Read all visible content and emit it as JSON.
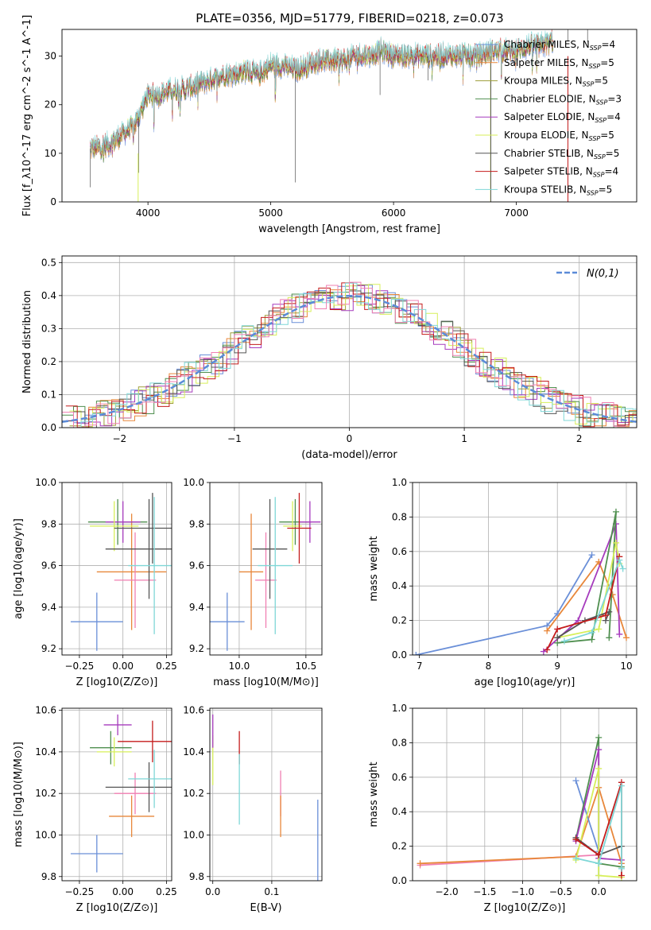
{
  "title": "PLATE=0356, MJD=51779, FIBERID=0218, z=0.073",
  "colors": {
    "c0": "#6a8fd8",
    "c1": "#e8873a",
    "c2": "#9e9e3a",
    "c3": "#4f8f4f",
    "c4": "#a63bbd",
    "c5": "#d7ef5a",
    "c6": "#555555",
    "c7": "#c41c1c",
    "c8": "#7fd7d7",
    "c_pink": "#f07fb2"
  },
  "chart_data": [
    {
      "type": "line",
      "panel": "spectrum",
      "xlabel": "wavelength [Angstrom, rest frame]",
      "ylabel": "Flux [f_λ10^-17 erg cm^-2 s^-1 A^-1]",
      "xlim": [
        3300,
        7980
      ],
      "ylim": [
        0,
        35.5
      ],
      "xticks": [
        4000,
        5000,
        6000,
        7000
      ],
      "yticks": [
        0,
        10,
        20,
        30
      ],
      "grid": false,
      "legend_position": "top-right",
      "legend": [
        "Chabrier MILES, N_SSP=4",
        "Salpeter MILES, N_SSP=5",
        "Kroupa MILES, N_SSP=5",
        "Chabrier ELODIE, N_SSP=3",
        "Salpeter ELODIE, N_SSP=4",
        "Kroupa ELODIE, N_SSP=5",
        "Chabrier STELIB, N_SSP=5",
        "Salpeter STELIB, N_SSP=4",
        "Kroupa STELIB, N_SSP=5"
      ],
      "continuum_x": [
        3530,
        3600,
        3700,
        3800,
        3900,
        4000,
        4100,
        4200,
        4300,
        4400,
        4500,
        4600,
        4700,
        4800,
        4900,
        5000,
        5100,
        5200,
        5300,
        5400,
        5500,
        5600,
        5700,
        5800,
        5900,
        6000,
        6100,
        6200,
        6300,
        6400,
        6500,
        6600,
        6700,
        6800,
        6900,
        7000,
        7100,
        7200,
        7300
      ],
      "continuum_y": [
        11,
        11,
        12,
        14,
        16,
        22,
        22,
        23,
        23,
        24,
        25,
        26,
        26,
        27,
        26,
        28,
        28,
        27,
        28,
        29,
        29,
        29,
        30,
        30,
        31,
        30,
        30,
        30,
        30,
        30,
        30,
        30,
        30,
        31,
        31,
        31,
        32,
        32,
        33
      ]
    },
    {
      "type": "line",
      "panel": "residual-histogram",
      "xlabel": "(data-model)/error",
      "ylabel": "Normed distribution",
      "xlim": [
        -2.5,
        2.5
      ],
      "ylim": [
        0,
        0.52
      ],
      "xticks": [
        -2,
        -1,
        0,
        1,
        2
      ],
      "yticks": [
        0.0,
        0.1,
        0.2,
        0.3,
        0.4,
        0.5
      ],
      "grid": true,
      "legend_position": "top-right",
      "legend": [
        "N(0,1)"
      ]
    },
    {
      "type": "scatter",
      "panel": "age-vs-Z",
      "xlabel": "Z [log10(Z/Z⊙)]",
      "ylabel": "age  [log10(age/yr)]",
      "xlim": [
        -0.35,
        0.28
      ],
      "ylim": [
        9.17,
        10.0
      ],
      "xticks": [
        -0.25,
        0.0,
        0.25
      ],
      "yticks": [
        9.2,
        9.4,
        9.6,
        9.8,
        10.0
      ],
      "grid": true,
      "points": [
        {
          "x": -0.15,
          "y": 9.33,
          "xerr": 0.15,
          "yerr": 0.14,
          "color": "c0"
        },
        {
          "x": 0.05,
          "y": 9.57,
          "xerr": 0.2,
          "yerr": 0.28,
          "color": "c1"
        },
        {
          "x": 0.07,
          "y": 9.53,
          "xerr": 0.12,
          "yerr": 0.23,
          "color": "c_pink"
        },
        {
          "x": -0.03,
          "y": 9.81,
          "xerr": 0.17,
          "yerr": 0.11,
          "color": "c3"
        },
        {
          "x": 0.0,
          "y": 9.81,
          "xerr": 0.1,
          "yerr": 0.1,
          "color": "c4"
        },
        {
          "x": -0.05,
          "y": 9.79,
          "xerr": 0.14,
          "yerr": 0.12,
          "color": "c5"
        },
        {
          "x": 0.15,
          "y": 9.68,
          "xerr": 0.25,
          "yerr": 0.24,
          "color": "c6"
        },
        {
          "x": 0.17,
          "y": 9.78,
          "xerr": 0.22,
          "yerr": 0.17,
          "color": "c6"
        },
        {
          "x": 0.18,
          "y": 9.6,
          "xerr": 0.15,
          "yerr": 0.33,
          "color": "c8"
        }
      ]
    },
    {
      "type": "scatter",
      "panel": "age-vs-mass",
      "xlabel": "mass [log10(M/M⊙)]",
      "ylabel": "",
      "xlim": [
        9.78,
        10.62
      ],
      "ylim": [
        9.17,
        10.0
      ],
      "xticks": [
        10.0,
        10.5
      ],
      "yticks": [
        9.2,
        9.4,
        9.6,
        9.8,
        10.0
      ],
      "grid": true,
      "points": [
        {
          "x": 9.91,
          "y": 9.33,
          "xerr": 0.13,
          "yerr": 0.14,
          "color": "c0"
        },
        {
          "x": 10.09,
          "y": 9.57,
          "xerr": 0.09,
          "yerr": 0.28,
          "color": "c1"
        },
        {
          "x": 10.2,
          "y": 9.53,
          "xerr": 0.08,
          "yerr": 0.23,
          "color": "c_pink"
        },
        {
          "x": 10.42,
          "y": 9.81,
          "xerr": 0.12,
          "yerr": 0.11,
          "color": "c3"
        },
        {
          "x": 10.53,
          "y": 9.81,
          "xerr": 0.08,
          "yerr": 0.1,
          "color": "c4"
        },
        {
          "x": 10.4,
          "y": 9.79,
          "xerr": 0.07,
          "yerr": 0.12,
          "color": "c5"
        },
        {
          "x": 10.23,
          "y": 9.68,
          "xerr": 0.13,
          "yerr": 0.24,
          "color": "c6"
        },
        {
          "x": 10.45,
          "y": 9.78,
          "xerr": 0.09,
          "yerr": 0.17,
          "color": "c7"
        },
        {
          "x": 10.27,
          "y": 9.6,
          "xerr": 0.13,
          "yerr": 0.33,
          "color": "c8"
        }
      ]
    },
    {
      "type": "line",
      "panel": "mass-weight-vs-age",
      "xlabel": "age  [log10(age/yr)]",
      "ylabel": "mass weight",
      "xlim": [
        6.9,
        10.15
      ],
      "ylim": [
        0,
        1.0
      ],
      "xticks": [
        7,
        8,
        9,
        10
      ],
      "yticks": [
        0.0,
        0.2,
        0.4,
        0.6,
        0.8,
        1.0
      ],
      "grid": true,
      "series": [
        {
          "color": "c0",
          "x": [
            6.95,
            8.85,
            9.0,
            9.5
          ],
          "y": [
            0.0,
            0.17,
            0.24,
            0.58
          ]
        },
        {
          "color": "c1",
          "x": [
            8.85,
            9.6,
            9.8,
            10.0
          ],
          "y": [
            0.14,
            0.54,
            0.35,
            0.1
          ]
        },
        {
          "color": "c4",
          "x": [
            8.8,
            9.3,
            9.85,
            9.9
          ],
          "y": [
            0.02,
            0.2,
            0.76,
            0.12
          ]
        },
        {
          "color": "c3",
          "x": [
            9.0,
            9.5,
            9.85,
            9.75
          ],
          "y": [
            0.07,
            0.09,
            0.83,
            0.1
          ]
        },
        {
          "color": "c5",
          "x": [
            9.0,
            9.6,
            9.85,
            9.9
          ],
          "y": [
            0.1,
            0.15,
            0.65,
            0.53
          ]
        },
        {
          "color": "c6",
          "x": [
            9.0,
            9.4,
            9.75,
            9.7
          ],
          "y": [
            0.1,
            0.2,
            0.25,
            0.2
          ]
        },
        {
          "color": "c7",
          "x": [
            8.85,
            9.0,
            9.7,
            9.9
          ],
          "y": [
            0.03,
            0.15,
            0.23,
            0.57
          ]
        },
        {
          "color": "c8",
          "x": [
            9.1,
            9.5,
            9.9,
            9.95
          ],
          "y": [
            0.08,
            0.13,
            0.55,
            0.5
          ]
        }
      ]
    },
    {
      "type": "scatter",
      "panel": "mass-vs-Z",
      "xlabel": "Z [log10(Z/Z⊙)]",
      "ylabel": "mass [log10(M/M⊙)]",
      "xlim": [
        -0.35,
        0.28
      ],
      "ylim": [
        9.78,
        10.61
      ],
      "xticks": [
        -0.25,
        0.0,
        0.25
      ],
      "yticks": [
        9.8,
        10.0,
        10.2,
        10.4,
        10.6
      ],
      "grid": true,
      "points": [
        {
          "x": -0.15,
          "y": 9.91,
          "xerr": 0.15,
          "yerr": 0.09,
          "color": "c0"
        },
        {
          "x": 0.05,
          "y": 10.09,
          "xerr": 0.13,
          "yerr": 0.1,
          "color": "c1"
        },
        {
          "x": 0.07,
          "y": 10.2,
          "xerr": 0.12,
          "yerr": 0.1,
          "color": "c_pink"
        },
        {
          "x": -0.07,
          "y": 10.42,
          "xerr": 0.12,
          "yerr": 0.08,
          "color": "c3"
        },
        {
          "x": -0.03,
          "y": 10.53,
          "xerr": 0.08,
          "yerr": 0.05,
          "color": "c4"
        },
        {
          "x": -0.05,
          "y": 10.4,
          "xerr": 0.1,
          "yerr": 0.07,
          "color": "c5"
        },
        {
          "x": 0.15,
          "y": 10.23,
          "xerr": 0.25,
          "yerr": 0.12,
          "color": "c6"
        },
        {
          "x": 0.17,
          "y": 10.45,
          "xerr": 0.2,
          "yerr": 0.1,
          "color": "c7"
        },
        {
          "x": 0.18,
          "y": 10.27,
          "xerr": 0.15,
          "yerr": 0.14,
          "color": "c8"
        }
      ]
    },
    {
      "type": "scatter",
      "panel": "mass-vs-EBV",
      "xlabel": "E(B-V)",
      "ylabel": "",
      "xlim": [
        -0.005,
        0.185
      ],
      "ylim": [
        9.78,
        10.61
      ],
      "xticks": [
        0.0,
        0.1
      ],
      "yticks": [
        9.8,
        10.0,
        10.2,
        10.4,
        10.6
      ],
      "grid": true,
      "points": [
        {
          "x": 0.0,
          "y": 10.36,
          "yerr": 0.12,
          "color": "c5"
        },
        {
          "x": 0.0,
          "y": 10.5,
          "yerr": 0.08,
          "color": "c4"
        },
        {
          "x": 0.045,
          "y": 10.42,
          "yerr": 0.08,
          "color": "c7"
        },
        {
          "x": 0.045,
          "y": 10.22,
          "yerr": 0.17,
          "color": "c8"
        },
        {
          "x": 0.115,
          "y": 10.2,
          "yerr": 0.11,
          "color": "c_pink"
        },
        {
          "x": 0.115,
          "y": 10.09,
          "yerr": 0.1,
          "color": "c1"
        },
        {
          "x": 0.178,
          "y": 9.97,
          "yerr": 0.2,
          "color": "c0"
        }
      ]
    },
    {
      "type": "line",
      "panel": "mass-weight-vs-Z",
      "xlabel": "Z [log10(Z/Z⊙)]",
      "ylabel": "mass weight",
      "xlim": [
        -2.45,
        0.5
      ],
      "ylim": [
        0,
        1.0
      ],
      "xticks": [
        -2.0,
        -1.5,
        -1.0,
        -0.5,
        0.0
      ],
      "yticks": [
        0.0,
        0.2,
        0.4,
        0.6,
        0.8,
        1.0
      ],
      "grid": true,
      "series": [
        {
          "color": "c_pink",
          "x": [
            -2.35,
            0.0
          ],
          "y": [
            0.09,
            0.15
          ]
        },
        {
          "color": "c1",
          "x": [
            -2.35,
            -0.3,
            0.0,
            0.3
          ],
          "y": [
            0.1,
            0.14,
            0.54,
            0.1
          ]
        },
        {
          "color": "c0",
          "x": [
            -0.3,
            0.0,
            0.0
          ],
          "y": [
            0.58,
            0.17,
            0.03
          ]
        },
        {
          "color": "c3",
          "x": [
            -0.3,
            0.0,
            0.0,
            0.3
          ],
          "y": [
            0.24,
            0.83,
            0.1,
            0.08
          ]
        },
        {
          "color": "c4",
          "x": [
            -0.3,
            0.0,
            0.0,
            0.3
          ],
          "y": [
            0.23,
            0.76,
            0.13,
            0.12
          ]
        },
        {
          "color": "c5",
          "x": [
            -0.3,
            0.0,
            0.0,
            0.3
          ],
          "y": [
            0.12,
            0.65,
            0.03,
            0.02
          ]
        },
        {
          "color": "c6",
          "x": [
            -0.3,
            0.0,
            0.3
          ],
          "y": [
            0.25,
            0.15,
            0.2
          ]
        },
        {
          "color": "c7",
          "x": [
            -0.3,
            0.0,
            0.3,
            0.3
          ],
          "y": [
            0.24,
            0.15,
            0.57,
            0.03
          ]
        },
        {
          "color": "c8",
          "x": [
            -0.3,
            0.0,
            0.3,
            0.3
          ],
          "y": [
            0.13,
            0.1,
            0.55,
            0.07
          ]
        }
      ]
    }
  ]
}
